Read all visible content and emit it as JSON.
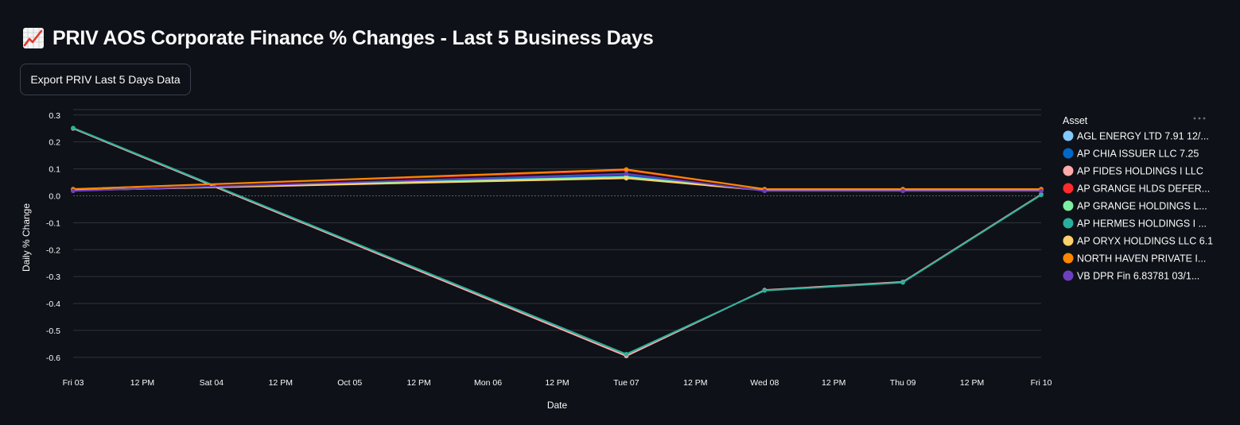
{
  "header": {
    "title": "PRIV AOS Corporate Finance % Changes - Last 5 Business Days",
    "icon": "chart-increasing-icon"
  },
  "toolbar": {
    "export_label": "Export PRIV Last 5 Days Data"
  },
  "colors": {
    "background": "#0e1117",
    "grid": "#31343c",
    "zero_line": "#5a5f6b"
  },
  "chart_data": {
    "type": "line",
    "title": "",
    "xlabel": "Date",
    "ylabel": "Daily % Change",
    "ylim": [
      -0.63,
      0.32
    ],
    "yticks": [
      0.3,
      0.2,
      0.1,
      0.0,
      -0.1,
      -0.2,
      -0.3,
      -0.4,
      -0.5,
      -0.6
    ],
    "ytick_labels": [
      "0.3",
      "0.2",
      "0.1",
      "0.0",
      "-0.1",
      "-0.2",
      "-0.3",
      "-0.4",
      "-0.5",
      "-0.6"
    ],
    "xlim": [
      0,
      7
    ],
    "xticks": [
      0,
      0.5,
      1,
      1.5,
      2,
      2.5,
      3,
      3.5,
      4,
      4.5,
      5,
      5.5,
      6,
      6.5,
      7
    ],
    "xtick_labels": [
      "Fri 03",
      "12 PM",
      "Sat 04",
      "12 PM",
      "Oct 05",
      "12 PM",
      "Mon 06",
      "12 PM",
      "Tue 07",
      "12 PM",
      "Wed 08",
      "12 PM",
      "Thu 09",
      "12 PM",
      "Fri 10"
    ],
    "x": [
      0,
      4,
      5,
      6,
      7
    ],
    "legend": {
      "title": "Asset",
      "position": "right",
      "menu_icon": "more-horizontal-icon"
    },
    "series": [
      {
        "name": "AGL ENERGY LTD 7.91 12/...",
        "color": "#83c9ff",
        "values": [
          0.02,
          0.07,
          0.02,
          0.02,
          0.02
        ]
      },
      {
        "name": "AP CHIA ISSUER LLC 7.25",
        "color": "#0068c9",
        "values": [
          0.02,
          0.075,
          0.02,
          0.02,
          0.02
        ]
      },
      {
        "name": "AP FIDES HOLDINGS I LLC",
        "color": "#ffabab",
        "values": [
          0.25,
          -0.595,
          -0.35,
          -0.32,
          0.005
        ]
      },
      {
        "name": "AP GRANGE HLDS DEFER...",
        "color": "#ff2b2b",
        "values": [
          0.025,
          0.095,
          0.025,
          0.025,
          0.025
        ]
      },
      {
        "name": "AP GRANGE HOLDINGS L...",
        "color": "#7defa1",
        "values": [
          0.02,
          0.07,
          0.02,
          0.02,
          0.02
        ]
      },
      {
        "name": "AP HERMES HOLDINGS I ...",
        "color": "#29b09d",
        "values": [
          0.252,
          -0.588,
          -0.352,
          -0.322,
          0.003
        ]
      },
      {
        "name": "AP ORYX HOLDINGS LLC 6.1",
        "color": "#ffd16a",
        "values": [
          0.02,
          0.065,
          0.02,
          0.02,
          0.02
        ]
      },
      {
        "name": "NORTH HAVEN PRIVATE I...",
        "color": "#ff8700",
        "values": [
          0.025,
          0.098,
          0.025,
          0.025,
          0.025
        ]
      },
      {
        "name": "VB DPR Fin 6.83781 03/1...",
        "color": "#6d3fc0",
        "values": [
          0.018,
          0.082,
          0.018,
          0.018,
          0.018
        ]
      }
    ]
  }
}
